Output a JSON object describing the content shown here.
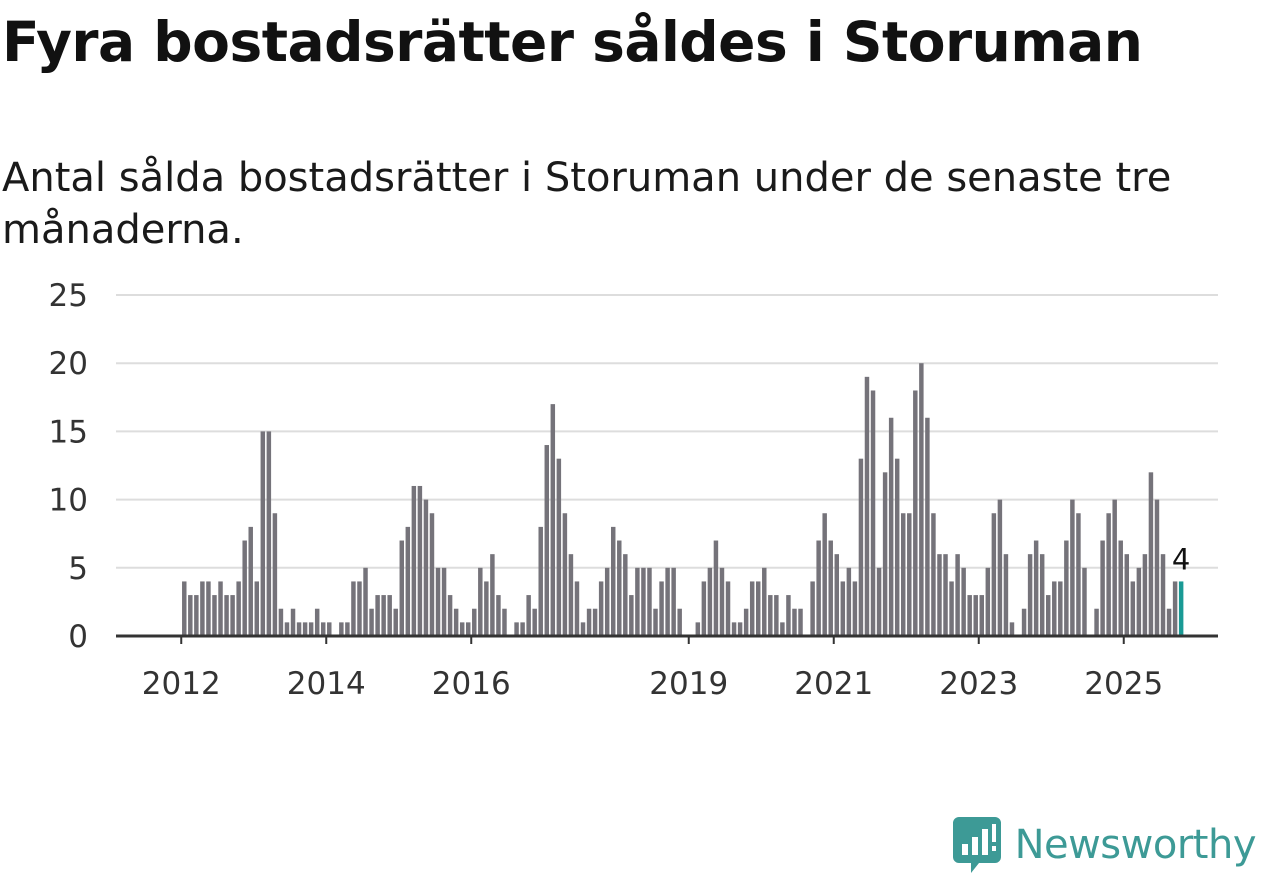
{
  "header": {
    "title": "Fyra bostadsrätter såldes i Storuman",
    "subtitle": "Antal sålda bostadsrätter i Storuman under de senaste tre månaderna."
  },
  "brand": {
    "name": "Newsworthy",
    "color": "#3d9a96"
  },
  "colors": {
    "bar": "#75737a",
    "highlight": "#1a9a95",
    "grid": "#dddddd",
    "axis": "#333333"
  },
  "chart_data": {
    "type": "bar",
    "title": "Fyra bostadsrätter såldes i Storuman",
    "subtitle": "Antal sålda bostadsrätter i Storuman under de senaste tre månaderna.",
    "xlabel": "",
    "ylabel": "",
    "ylim": [
      0,
      25
    ],
    "yticks": [
      0,
      5,
      10,
      15,
      20,
      25
    ],
    "grid": true,
    "x_range": [
      2011.1,
      2026.3
    ],
    "xticks": [
      2012,
      2014,
      2016,
      2019,
      2021,
      2023,
      2025
    ],
    "start_month": "2012-01",
    "values": [
      4,
      3,
      3,
      4,
      4,
      3,
      4,
      3,
      3,
      4,
      7,
      8,
      4,
      15,
      15,
      9,
      2,
      1,
      2,
      1,
      1,
      1,
      2,
      1,
      1,
      0,
      1,
      1,
      4,
      4,
      5,
      2,
      3,
      3,
      3,
      2,
      7,
      8,
      11,
      11,
      10,
      9,
      5,
      5,
      3,
      2,
      1,
      1,
      2,
      5,
      4,
      6,
      3,
      2,
      0,
      1,
      1,
      3,
      2,
      8,
      14,
      17,
      13,
      9,
      6,
      4,
      1,
      2,
      2,
      4,
      5,
      8,
      7,
      6,
      3,
      5,
      5,
      5,
      2,
      4,
      5,
      5,
      2,
      0,
      0,
      1,
      4,
      5,
      7,
      5,
      4,
      1,
      1,
      2,
      4,
      4,
      5,
      3,
      3,
      1,
      3,
      2,
      2,
      0,
      4,
      7,
      9,
      7,
      6,
      4,
      5,
      4,
      13,
      19,
      18,
      5,
      12,
      16,
      13,
      9,
      9,
      18,
      20,
      16,
      9,
      6,
      6,
      4,
      6,
      5,
      3,
      3,
      3,
      5,
      9,
      10,
      6,
      1,
      0,
      2,
      6,
      7,
      6,
      3,
      4,
      4,
      7,
      10,
      9,
      5,
      0,
      2,
      7,
      9,
      10,
      7,
      6,
      4,
      5,
      6,
      12,
      10,
      6,
      2,
      4,
      4
    ],
    "highlight": {
      "index": 165,
      "label": "4"
    }
  }
}
